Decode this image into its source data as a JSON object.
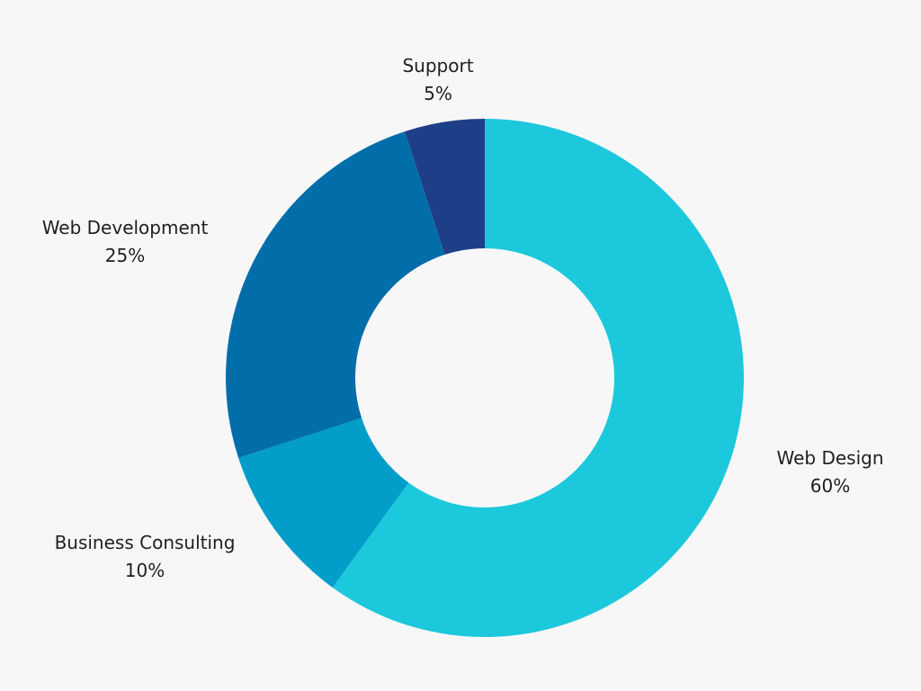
{
  "chart_data": {
    "type": "pie",
    "categories": [
      "Web Design",
      "Business Consulting",
      "Web Development",
      "Support"
    ],
    "values": [
      60,
      10,
      25,
      5
    ],
    "value_labels": [
      "60%",
      "10%",
      "25%",
      "5%"
    ],
    "colors": [
      "#1cc8dc",
      "#029ec9",
      "#016eaa",
      "#1e3f88"
    ],
    "title": "",
    "donut": true
  }
}
